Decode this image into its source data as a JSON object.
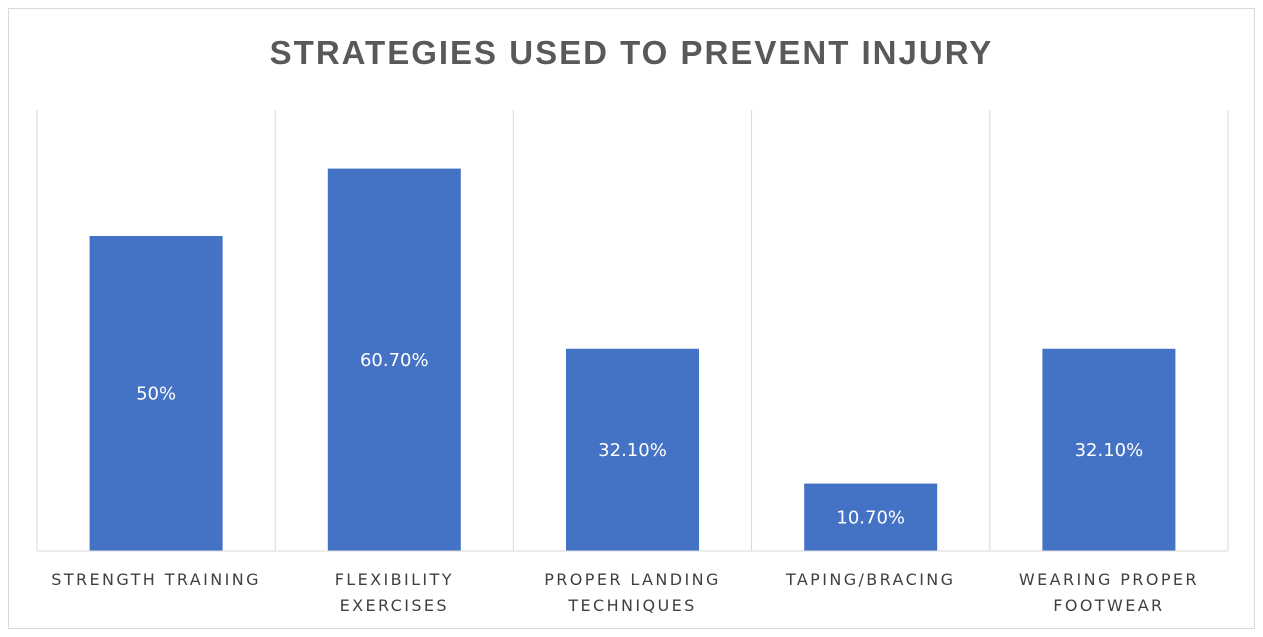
{
  "chart_data": {
    "type": "bar",
    "title": "STRATEGIES USED TO PREVENT INJURY",
    "categories": [
      [
        "STRENGTH TRAINING"
      ],
      [
        "FLEXIBILITY",
        "EXERCISES"
      ],
      [
        "PROPER LANDING",
        "TECHNIQUES"
      ],
      [
        "TAPING/BRACING"
      ],
      [
        "WEARING PROPER",
        "FOOTWEAR"
      ]
    ],
    "values": [
      50,
      60.7,
      32.1,
      10.7,
      32.1
    ],
    "data_labels": [
      "50%",
      "60.70%",
      "32.10%",
      "10.70%",
      "32.10%"
    ],
    "ylim": [
      0,
      70
    ],
    "grid": "vertical category separators",
    "colors": {
      "bar": "#4472C4",
      "title": "#595959",
      "axis_text": "#404040",
      "gridline": "#d9d9d9"
    }
  }
}
